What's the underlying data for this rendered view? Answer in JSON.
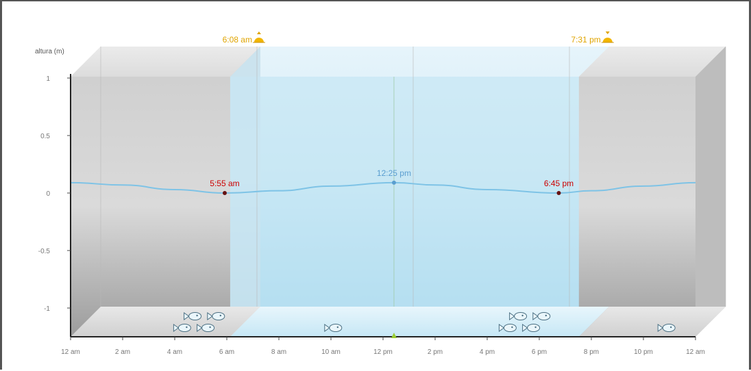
{
  "chart_data": {
    "type": "line",
    "ylabel": "altura (m)",
    "ylim": [
      -1.25,
      1
    ],
    "y_ticks": [
      {
        "value": 1,
        "label": "1"
      },
      {
        "value": 0.5,
        "label": "0.5"
      },
      {
        "value": 0,
        "label": "0"
      },
      {
        "value": -0.5,
        "label": "-0.5"
      },
      {
        "value": -1,
        "label": "-1"
      }
    ],
    "xlim_hours": [
      0,
      24
    ],
    "x_ticks": [
      {
        "hour": 0,
        "label": "12 am"
      },
      {
        "hour": 2,
        "label": "2 am"
      },
      {
        "hour": 4,
        "label": "4 am"
      },
      {
        "hour": 6,
        "label": "6 am"
      },
      {
        "hour": 8,
        "label": "8 am"
      },
      {
        "hour": 10,
        "label": "10 am"
      },
      {
        "hour": 12,
        "label": "12 pm"
      },
      {
        "hour": 14,
        "label": "2 pm"
      },
      {
        "hour": 16,
        "label": "4 pm"
      },
      {
        "hour": 18,
        "label": "6 pm"
      },
      {
        "hour": 20,
        "label": "8 pm"
      },
      {
        "hour": 22,
        "label": "10 pm"
      },
      {
        "hour": 24,
        "label": "12 am"
      }
    ],
    "series": [
      {
        "x_hours": [
          0,
          2,
          4,
          5.92,
          8,
          10,
          12.42,
          14,
          16,
          18.75,
          20,
          22,
          24
        ],
        "y": [
          0.09,
          0.07,
          0.03,
          0.0,
          0.02,
          0.06,
          0.09,
          0.07,
          0.03,
          0.0,
          0.02,
          0.06,
          0.09
        ]
      }
    ],
    "tide_events": [
      {
        "label": "5:55 am",
        "hour": 5.92,
        "value": 0.0,
        "color": "#cc0000"
      },
      {
        "label": "12:25 pm",
        "hour": 12.42,
        "value": 0.09,
        "color": "#5a9ed0"
      },
      {
        "label": "6:45 pm",
        "hour": 18.75,
        "value": 0.0,
        "color": "#cc0000"
      }
    ],
    "sun_events": [
      {
        "label": "6:08 am",
        "hour": 6.13,
        "type": "sunrise"
      },
      {
        "label": "7:31 pm",
        "hour": 19.52,
        "type": "sunset"
      }
    ],
    "fish_markers": [
      {
        "hour": 4.3,
        "row": "front"
      },
      {
        "hour": 5.2,
        "row": "front"
      },
      {
        "hour": 4.7,
        "row": "back"
      },
      {
        "hour": 5.6,
        "row": "back"
      },
      {
        "hour": 10.1,
        "row": "front"
      },
      {
        "hour": 16.8,
        "row": "front"
      },
      {
        "hour": 17.7,
        "row": "front"
      },
      {
        "hour": 17.2,
        "row": "back"
      },
      {
        "hour": 18.1,
        "row": "back"
      },
      {
        "hour": 22.9,
        "row": "front"
      }
    ],
    "grid": true,
    "colors": {
      "night": "#c9c9c9",
      "day": "#d6ecf7",
      "curve": "#7ec3e6",
      "sun": "#f0b000",
      "axis": "#222222",
      "now_marker": "#9acd32"
    }
  }
}
